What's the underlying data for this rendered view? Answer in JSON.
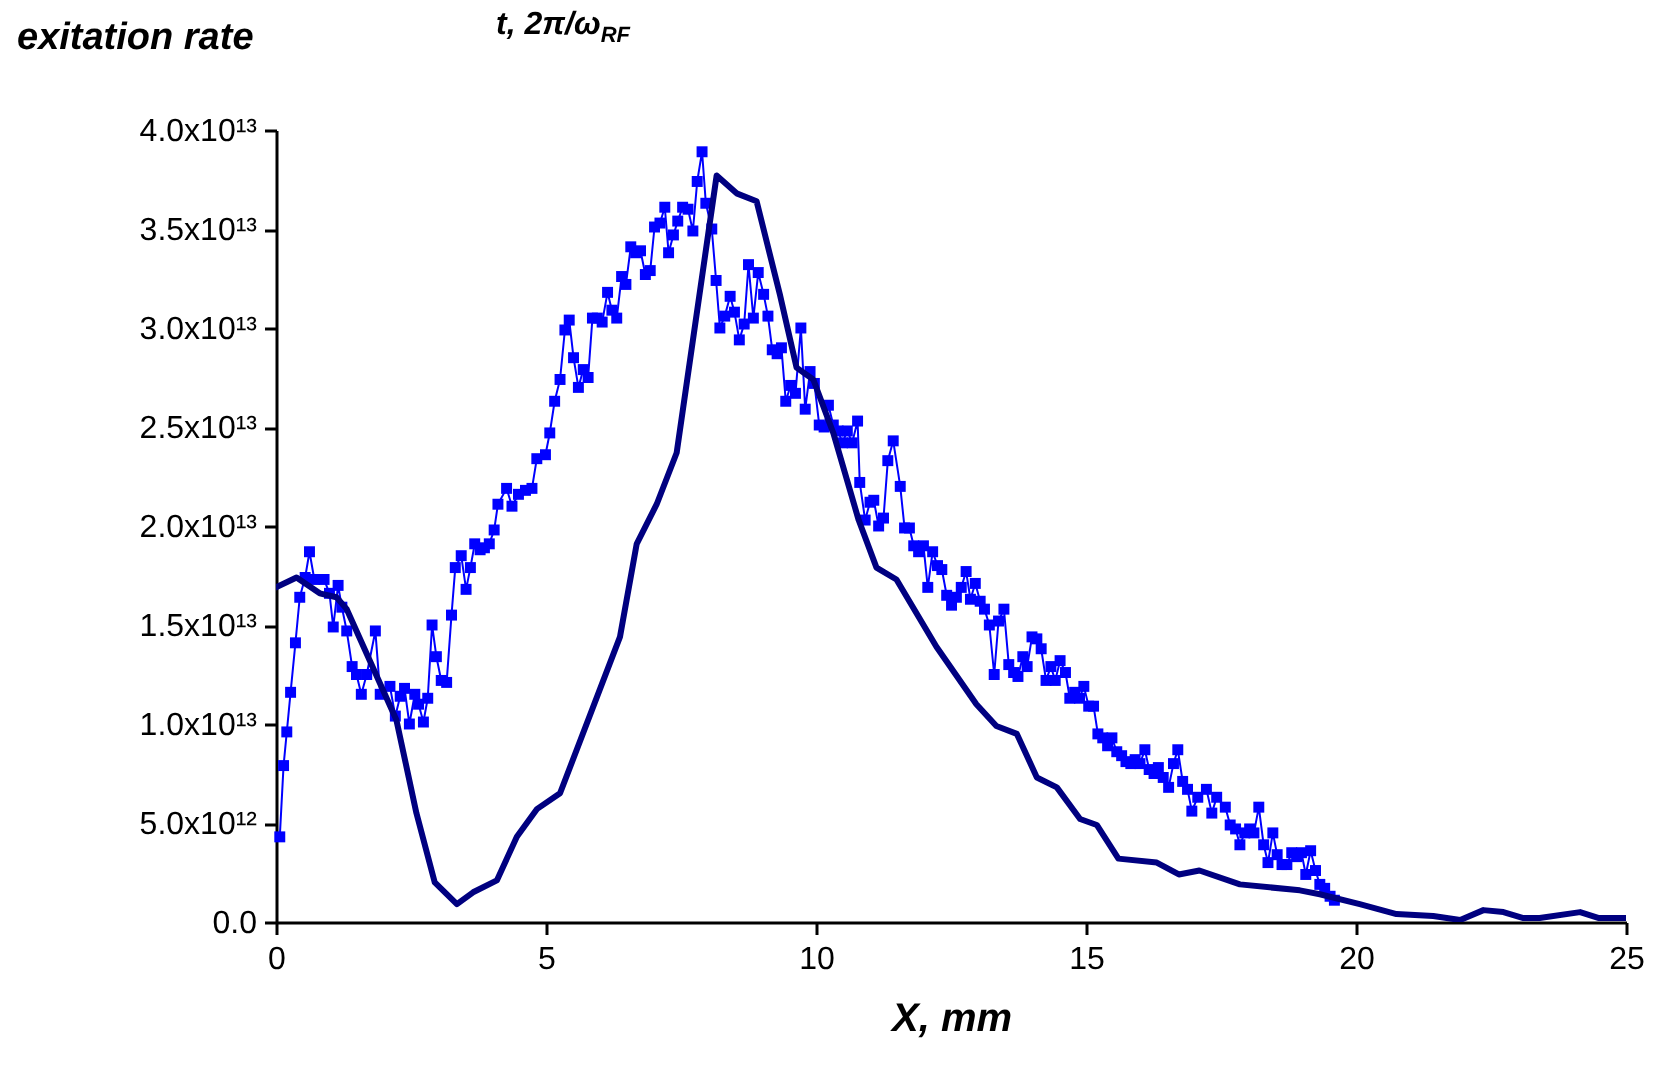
{
  "chart_data": {
    "type": "line",
    "title": "t, 2π/ω$_{RF}$",
    "ylabel": "exitation rate",
    "xlabel": "X, mm",
    "xlim": [
      0,
      25
    ],
    "xticks": [
      0,
      5,
      10,
      15,
      20,
      25
    ],
    "ylim": [
      0,
      40000000000000.0
    ],
    "yticks": [
      {
        "value": 0,
        "label": "0.0"
      },
      {
        "value": 5000000000000.0,
        "label": "5.0x10¹²"
      },
      {
        "value": 10000000000000.0,
        "label": "1.0x10¹³"
      },
      {
        "value": 15000000000000.0,
        "label": "1.5x10¹³"
      },
      {
        "value": 20000000000000.0,
        "label": "2.0x10¹³"
      },
      {
        "value": 25000000000000.0,
        "label": "2.5x10¹³"
      },
      {
        "value": 30000000000000.0,
        "label": "3.0x10¹³"
      },
      {
        "value": 35000000000000.0,
        "label": "3.5x10¹³"
      },
      {
        "value": 40000000000000.0,
        "label": "4.0x10¹³"
      }
    ],
    "grid": false,
    "series": [
      {
        "color": "#0000ff",
        "marker": "square",
        "line_style": "solid",
        "x": [
          0.07,
          0.14,
          0.2,
          0.27,
          0.36,
          0.44,
          0.54,
          0.62,
          0.71,
          0.89,
          0.99,
          1.06,
          1.15,
          1.22,
          1.31,
          1.41,
          1.49,
          1.58,
          1.68,
          1.84,
          1.93,
          2.11,
          2.21,
          2.3,
          2.38,
          2.47,
          2.57,
          2.64,
          2.73,
          2.81,
          2.89,
          2.97,
          3.06,
          3.16,
          3.25,
          3.32,
          3.43,
          3.52,
          3.6,
          3.68,
          3.78,
          3.86,
          3.95,
          4.04,
          4.11,
          4.27,
          4.37,
          4.49,
          4.62,
          4.74,
          4.83,
          4.99,
          5.07,
          5.16,
          5.26,
          5.35,
          5.43,
          5.51,
          5.6,
          5.69,
          5.78,
          5.86,
          5.95,
          6.04,
          6.14,
          6.22,
          6.31,
          6.4,
          6.48,
          6.57,
          6.66,
          6.75,
          6.84,
          6.93,
          7.01,
          7.11,
          7.2,
          7.27,
          7.36,
          7.44,
          7.53,
          7.63,
          7.72,
          7.8,
          7.89,
          7.96,
          8.07,
          8.15,
          8.22,
          8.31,
          8.41,
          8.49,
          8.58,
          8.67,
          8.75,
          8.84,
          8.93,
          9.03,
          9.11,
          9.19,
          9.28,
          9.36,
          9.44,
          9.53,
          9.62,
          9.72,
          9.8,
          9.89,
          9.97,
          10.06,
          10.15,
          10.23,
          10.32,
          10.41,
          10.49,
          10.58,
          10.67,
          10.77,
          10.81,
          10.91,
          11.0,
          11.07,
          11.16,
          11.25,
          11.33,
          11.43,
          11.56,
          11.64,
          11.73,
          11.81,
          11.9,
          11.99,
          12.07,
          12.16,
          12.25,
          12.33,
          12.42,
          12.51,
          12.6,
          12.69,
          12.78,
          12.86,
          12.95,
          13.04,
          13.12,
          13.21,
          13.3,
          13.38,
          13.48,
          13.57,
          13.66,
          13.74,
          13.83,
          13.91,
          14.0,
          14.09,
          14.17,
          14.26,
          14.35,
          14.43,
          14.52,
          14.62,
          14.7,
          14.79,
          14.88,
          14.96,
          15.05,
          15.14,
          15.22,
          15.31,
          15.4,
          15.48,
          15.57,
          15.66,
          15.74,
          15.83,
          15.91,
          16.0,
          16.09,
          16.17,
          16.26,
          16.34,
          16.43,
          16.53,
          16.62,
          16.7,
          16.79,
          16.88,
          16.96,
          17.07,
          17.23,
          17.33,
          17.42,
          17.58,
          17.67,
          17.77,
          17.85,
          17.94,
          18.03,
          18.11,
          18.2,
          18.29,
          18.37,
          18.46,
          18.54,
          18.63,
          18.72,
          18.81,
          18.9,
          18.99,
          19.07,
          19.16,
          19.25,
          19.33,
          19.42,
          19.52,
          19.6
        ],
        "values": [
          4300000000000.0,
          7900000000000.0,
          9600000000000.0,
          11600000000000.0,
          14100000000000.0,
          16400000000000.0,
          17400000000000.0,
          18700000000000.0,
          17300000000000.0,
          17300000000000.0,
          16600000000000.0,
          14900000000000.0,
          17000000000000.0,
          15900000000000.0,
          14700000000000.0,
          12900000000000.0,
          12500000000000.0,
          11500000000000.0,
          12500000000000.0,
          14700000000000.0,
          11500000000000.0,
          11900000000000.0,
          10400000000000.0,
          11400000000000.0,
          11800000000000.0,
          10000000000000.0,
          11500000000000.0,
          11000000000000.0,
          10100000000000.0,
          11300000000000.0,
          15000000000000.0,
          13400000000000.0,
          12200000000000.0,
          12100000000000.0,
          15500000000000.0,
          17900000000000.0,
          18500000000000.0,
          16800000000000.0,
          17900000000000.0,
          19100000000000.0,
          18800000000000.0,
          18900000000000.0,
          19100000000000.0,
          19800000000000.0,
          21100000000000.0,
          21900000000000.0,
          21000000000000.0,
          21600000000000.0,
          21800000000000.0,
          21900000000000.0,
          23400000000000.0,
          23600000000000.0,
          24700000000000.0,
          26300000000000.0,
          27400000000000.0,
          29900000000000.0,
          30400000000000.0,
          28500000000000.0,
          27000000000000.0,
          27900000000000.0,
          27500000000000.0,
          30500000000000.0,
          30500000000000.0,
          30300000000000.0,
          31800000000000.0,
          30900000000000.0,
          30500000000000.0,
          32600000000000.0,
          32200000000000.0,
          34100000000000.0,
          33800000000000.0,
          33900000000000.0,
          32700000000000.0,
          32900000000000.0,
          35100000000000.0,
          35300000000000.0,
          36100000000000.0,
          33800000000000.0,
          34700000000000.0,
          35400000000000.0,
          36100000000000.0,
          36000000000000.0,
          34900000000000.0,
          37400000000000.0,
          38900000000000.0,
          36300000000000.0,
          35000000000000.0,
          32400000000000.0,
          30000000000000.0,
          30600000000000.0,
          31600000000000.0,
          30800000000000.0,
          29400000000000.0,
          30200000000000.0,
          33200000000000.0,
          30500000000000.0,
          32800000000000.0,
          31700000000000.0,
          30600000000000.0,
          28900000000000.0,
          28700000000000.0,
          29000000000000.0,
          26300000000000.0,
          27100000000000.0,
          26700000000000.0,
          30000000000000.0,
          25900000000000.0,
          27800000000000.0,
          27200000000000.0,
          25100000000000.0,
          25000000000000.0,
          26100000000000.0,
          25100000000000.0,
          24800000000000.0,
          24200000000000.0,
          24800000000000.0,
          24200000000000.0,
          25300000000000.0,
          22200000000000.0,
          20300000000000.0,
          21200000000000.0,
          21300000000000.0,
          20000000000000.0,
          20400000000000.0,
          23300000000000.0,
          24300000000000.0,
          22000000000000.0,
          19900000000000.0,
          19900000000000.0,
          19000000000000.0,
          18700000000000.0,
          19000000000000.0,
          16900000000000.0,
          18700000000000.0,
          18000000000000.0,
          17800000000000.0,
          16500000000000.0,
          16000000000000.0,
          16400000000000.0,
          16900000000000.0,
          17700000000000.0,
          16300000000000.0,
          17100000000000.0,
          16200000000000.0,
          15800000000000.0,
          15000000000000.0,
          12500000000000.0,
          15200000000000.0,
          15800000000000.0,
          13000000000000.0,
          12600000000000.0,
          12400000000000.0,
          13400000000000.0,
          12900000000000.0,
          14400000000000.0,
          14300000000000.0,
          13800000000000.0,
          12200000000000.0,
          12900000000000.0,
          12200000000000.0,
          13200000000000.0,
          12600000000000.0,
          11300000000000.0,
          11600000000000.0,
          11300000000000.0,
          11900000000000.0,
          10900000000000.0,
          10900000000000.0,
          9500000000000.0,
          9300000000000.0,
          8900000000000.0,
          9300000000000.0,
          8600000000000.0,
          8400000000000.0,
          8100000000000.0,
          8000000000000.0,
          8200000000000.0,
          8000000000000.0,
          8700000000000.0,
          7700000000000.0,
          7500000000000.0,
          7800000000000.0,
          7300000000000.0,
          6800000000000.0,
          8000000000000.0,
          8700000000000.0,
          7100000000000.0,
          6700000000000.0,
          5600000000000.0,
          6300000000000.0,
          6700000000000.0,
          5500000000000.0,
          6300000000000.0,
          5800000000000.0,
          4900000000000.0,
          4700000000000.0,
          3900000000000.0,
          4500000000000.0,
          4700000000000.0,
          4500000000000.0,
          5800000000000.0,
          3900000000000.0,
          3000000000000.0,
          4500000000000.0,
          3400000000000.0,
          2900000000000.0,
          2900000000000.0,
          3500000000000.0,
          3300000000000.0,
          3500000000000.0,
          2400000000000.0,
          3600000000000.0,
          2600000000000.0,
          1900000000000.0,
          1700000000000.0,
          1300000000000.0,
          1100000000000.0
        ]
      },
      {
        "color": "#000080",
        "marker": "none",
        "line_style": "solid",
        "x": [
          0,
          0.38,
          0.81,
          1.12,
          1.31,
          2.23,
          2.6,
          2.94,
          3.35,
          3.65,
          4.09,
          4.46,
          4.83,
          5.26,
          6.37,
          6.68,
          7.05,
          7.42,
          8.16,
          8.53,
          8.9,
          9.33,
          9.64,
          9.95,
          10.32,
          10.79,
          11.12,
          11.49,
          12.23,
          12.97,
          13.34,
          13.72,
          14.09,
          14.46,
          14.89,
          15.2,
          15.6,
          16.31,
          16.72,
          17.1,
          17.85,
          18.96,
          19.33,
          20.07,
          20.75,
          21.43,
          21.93,
          22.36,
          22.73,
          23.1,
          23.4,
          24.15,
          24.5,
          25
        ],
        "values": [
          16900000000000.0,
          17400000000000.0,
          16600000000000.0,
          16400000000000.0,
          15800000000000.0,
          10200000000000.0,
          5500000000000.0,
          2000000000000.0,
          900000000000.0,
          1500000000000.0,
          2100000000000.0,
          4300000000000.0,
          5700000000000.0,
          6500000000000.0,
          14400000000000.0,
          19100000000000.0,
          21100000000000.0,
          23700000000000.0,
          37700000000000.0,
          36800000000000.0,
          36400000000000.0,
          31700000000000.0,
          28000000000000.0,
          27400000000000.0,
          24700000000000.0,
          20300000000000.0,
          17900000000000.0,
          17300000000000.0,
          13900000000000.0,
          11000000000000.0,
          9900000000000.0,
          9500000000000.0,
          7300000000000.0,
          6800000000000.0,
          5200000000000.0,
          4900000000000.0,
          3200000000000.0,
          3000000000000.0,
          2400000000000.0,
          2600000000000.0,
          1900000000000.0,
          1600000000000.0,
          1400000000000.0,
          900000000000.0,
          400000000000.0,
          300000000000.0,
          100000000000.0,
          600000000000.0,
          500000000000.0,
          200000000000.0,
          200000000000.0,
          500000000000.0,
          200000000000.0,
          200000000000.0
        ]
      }
    ]
  }
}
